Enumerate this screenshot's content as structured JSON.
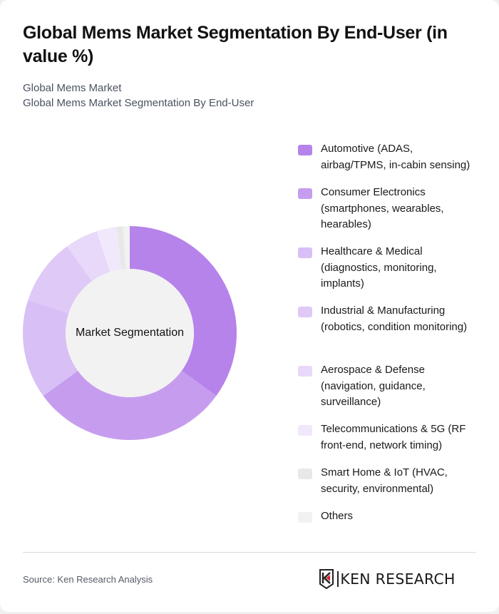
{
  "header": {
    "title": "Global Mems Market Segmentation By End-User (in value %)",
    "subtitle_line1": "Global Mems Market",
    "subtitle_line2": "Global Mems Market Segmentation By End-User"
  },
  "chart": {
    "center_label": "Market Segmentation"
  },
  "legend": [
    {
      "label": "Automotive (ADAS, airbag/TPMS, in-cabin sensing)",
      "color": "#B683EA"
    },
    {
      "label": "Consumer Electronics (smartphones, wearables, hearables)",
      "color": "#C69DEE"
    },
    {
      "label": "Healthcare & Medical (diagnostics, monitoring, implants)",
      "color": "#D8BFF5"
    },
    {
      "label": "Industrial & Manufacturing (robotics, condition monitoring)",
      "color": "#DFC9F6"
    },
    {
      "label": "Aerospace & Defense (navigation, guidance, surveillance)",
      "color": "#E8D8F9"
    },
    {
      "label": "Telecommunications & 5G (RF front-end, network timing)",
      "color": "#F1E8FC"
    },
    {
      "label": "Smart Home & IoT (HVAC, security, environmental)",
      "color": "#E8E8E8"
    },
    {
      "label": "Others",
      "color": "#F2F2F2"
    }
  ],
  "footer": {
    "source": "Source: Ken Research Analysis",
    "logo_text": "KEN RESEARCH"
  },
  "chart_data": {
    "type": "pie",
    "variant": "donut",
    "title": "Global Mems Market Segmentation By End-User (in value %)",
    "subtitle": "Global Mems Market Segmentation By End-User",
    "center_label": "Market Segmentation",
    "categories": [
      "Automotive (ADAS, airbag/TPMS, in-cabin sensing)",
      "Consumer Electronics (smartphones, wearables, hearables)",
      "Healthcare & Medical (diagnostics, monitoring, implants)",
      "Industrial & Manufacturing (robotics, condition monitoring)",
      "Aerospace & Defense (navigation, guidance, surveillance)",
      "Telecommunications & 5G (RF front-end, network timing)",
      "Smart Home & IoT (HVAC, security, environmental)",
      "Others"
    ],
    "values": [
      35,
      30,
      15,
      10,
      5,
      3,
      1,
      1
    ],
    "colors": [
      "#B683EA",
      "#C69DEE",
      "#D8BFF5",
      "#DFC9F6",
      "#E8D8F9",
      "#F1E8FC",
      "#E8E8E8",
      "#F2F2F2"
    ],
    "unit": "%",
    "legend_position": "right",
    "start_angle": "12 o'clock, clockwise"
  }
}
